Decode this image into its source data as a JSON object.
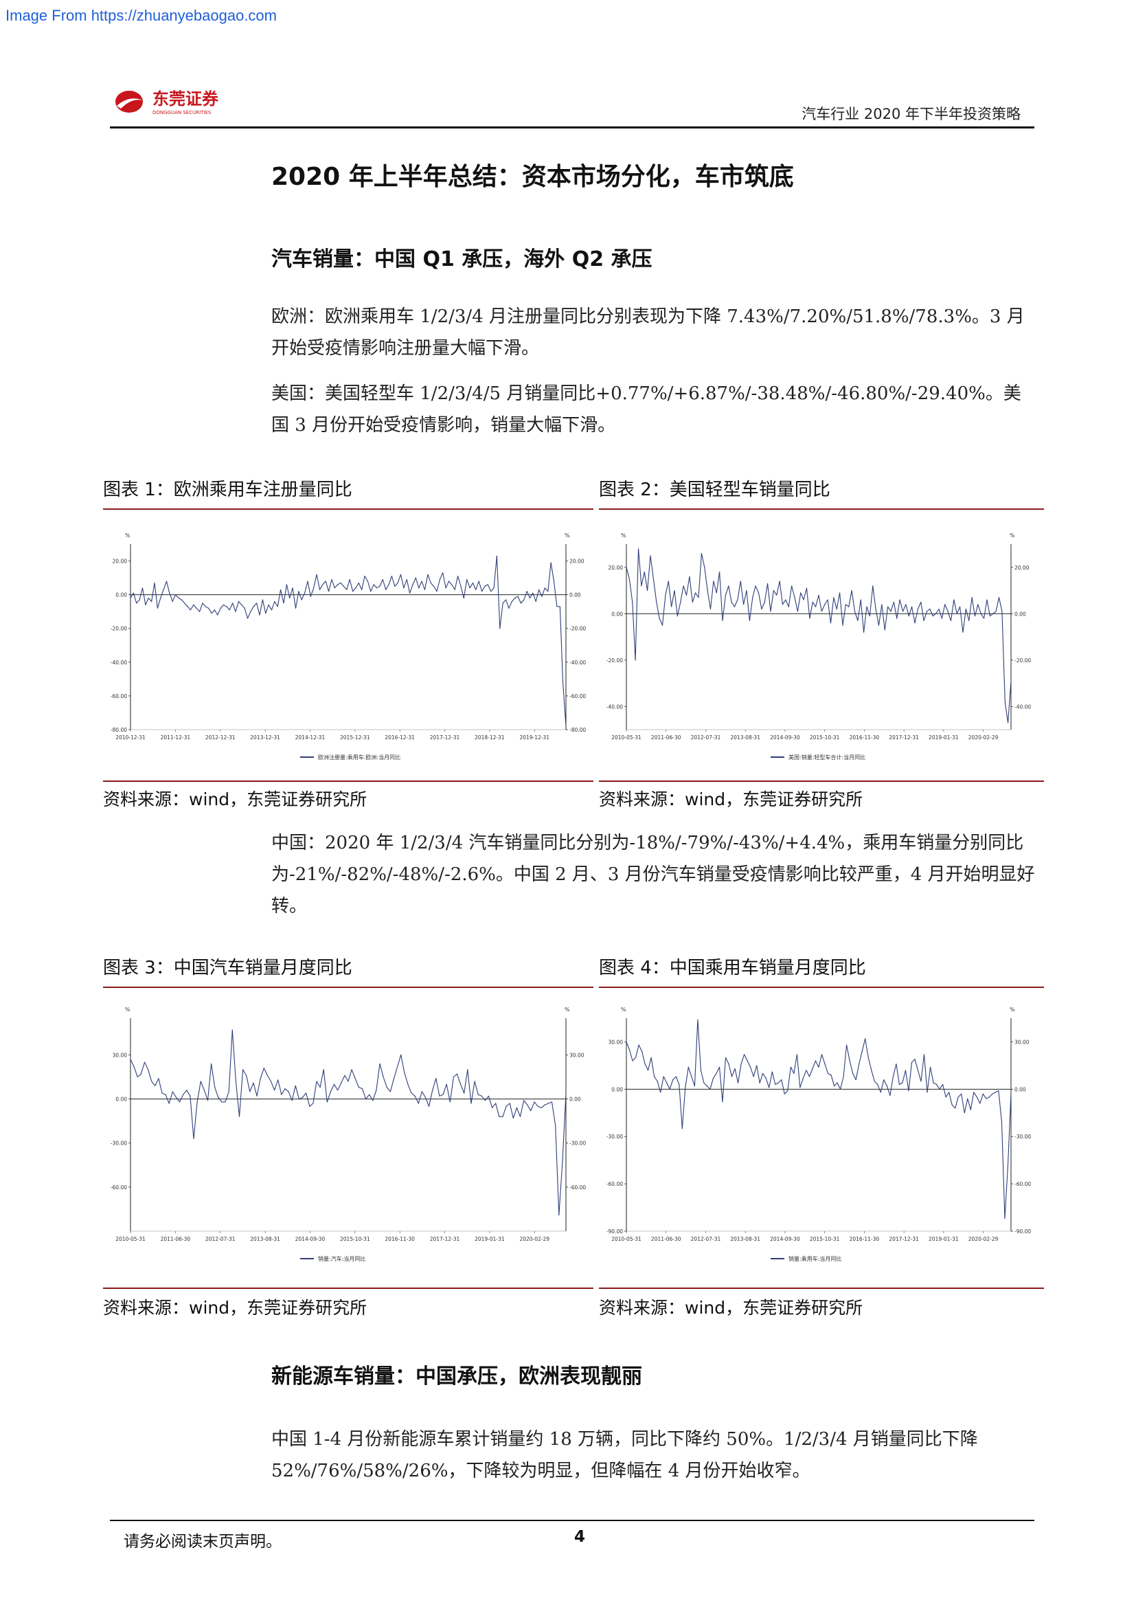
{
  "watermark": "Image From https://zhuanyebaogao.com",
  "header": {
    "logo_text": "东莞证券",
    "logo_subtext": "DONGGUAN SECURITIES",
    "report_title": "汽车行业 2020 年下半年投资策略"
  },
  "section_title": "2020 年上半年总结：资本市场分化，车市筑底",
  "subsection1_title": "汽车销量：中国 Q1 承压，海外 Q2 承压",
  "para_europe": "欧洲：欧洲乘用车 1/2/3/4 月注册量同比分别表现为下降 7.43%/7.20%/51.8%/78.3%。3 月开始受疫情影响注册量大幅下滑。",
  "para_us": "美国：美国轻型车 1/2/3/4/5 月销量同比+0.77%/+6.87%/-38.48%/-46.80%/-29.40%。美国 3 月份开始受疫情影响，销量大幅下滑。",
  "para_china": "中国：2020 年 1/2/3/4 汽车销量同比分别为-18%/-79%/-43%/+4.4%，乘用车销量分别同比为-21%/-82%/-48%/-2.6%。中国 2 月、3 月份汽车销量受疫情影响比较严重，4 月开始明显好转。",
  "subsection2_title": "新能源车销量：中国承压，欧洲表现靓丽",
  "para_nev": "中国 1-4 月份新能源车累计销量约 18 万辆，同比下降约 50%。1/2/3/4 月销量同比下降 52%/76%/58%/26%，下降较为明显，但降幅在 4 月份开始收窄。",
  "figures": [
    {
      "title": "图表 1：欧洲乘用车注册量同比",
      "source": "资料来源：wind，东莞证券研究所"
    },
    {
      "title": "图表 2：美国轻型车销量同比",
      "source": "资料来源：wind，东莞证券研究所"
    },
    {
      "title": "图表 3：中国汽车销量月度同比",
      "source": "资料来源：wind，东莞证券研究所"
    },
    {
      "title": "图表 4：中国乘用车销量月度同比",
      "source": "资料来源：wind，东莞证券研究所"
    }
  ],
  "footer": {
    "note": "请务必阅读末页声明。",
    "page": "4"
  },
  "colors": {
    "line": "#2f3e78",
    "axis": "#222222",
    "grid": "#cccccc",
    "rule": "#8b1a1a",
    "logo_red": "#c8161d"
  },
  "chart_data": [
    {
      "type": "line",
      "unit_left": "%",
      "unit_right": "%",
      "legend": "欧洲注册量:乘用车:欧洲:当月同比",
      "ylim": [
        -80,
        30
      ],
      "yticks": [
        20,
        0,
        -20,
        -40,
        -60,
        -80
      ],
      "ytick_labels": [
        "20.00",
        "0.00",
        "-20.00",
        "-40.00",
        "-60.00",
        "-80.00"
      ],
      "xtick_labels": [
        "2010-12-31",
        "2011-12-31",
        "2012-12-31",
        "2013-12-31",
        "2014-12-31",
        "2015-12-31",
        "2016-12-31",
        "2017-12-31",
        "2018-12-31",
        "2019-12-31"
      ],
      "x_start": "2010-12",
      "x_end": "2020-04",
      "values": [
        -2,
        1,
        -5,
        -3,
        4,
        -6,
        -2,
        -4,
        7,
        -8,
        -2,
        3,
        8,
        1,
        -4,
        0,
        -2,
        -3,
        -5,
        -7,
        -9,
        -6,
        -8,
        -10,
        -5,
        -7,
        -8,
        -11,
        -9,
        -12,
        -8,
        -6,
        -7,
        -9,
        -5,
        -10,
        -4,
        -6,
        -8,
        -14,
        -10,
        -7,
        -5,
        -12,
        -3,
        -11,
        -6,
        -9,
        -4,
        -7,
        3,
        -5,
        6,
        -2,
        4,
        -8,
        2,
        -3,
        1,
        8,
        -1,
        4,
        12,
        3,
        6,
        8,
        2,
        9,
        4,
        6,
        7,
        5,
        3,
        9,
        2,
        4,
        7,
        3,
        11,
        8,
        2,
        6,
        4,
        5,
        9,
        3,
        6,
        11,
        5,
        7,
        12,
        4,
        9,
        1,
        6,
        10,
        4,
        8,
        3,
        12,
        7,
        5,
        2,
        9,
        13,
        4,
        8,
        6,
        3,
        11,
        5,
        -2,
        9,
        4,
        7,
        3,
        8,
        2,
        5,
        6,
        2,
        4,
        23,
        -20,
        -5,
        -3,
        -8,
        -4,
        -2,
        -1,
        -5,
        -3,
        2,
        -2,
        1,
        -4,
        3,
        -1,
        4,
        2,
        19,
        8,
        -7,
        -7,
        -52,
        -78
      ]
    },
    {
      "type": "line",
      "unit_left": "%",
      "unit_right": "%",
      "legend": "美国:销量:轻型车合计:当月同比",
      "ylim": [
        -50,
        30
      ],
      "yticks": [
        20,
        0,
        -20,
        -40
      ],
      "ytick_labels": [
        "20.00",
        "0.00",
        "-20.00",
        "-40.00"
      ],
      "xtick_labels": [
        "2010-05-31",
        "2011-06-30",
        "2012-07-31",
        "2013-08-31",
        "2014-09-30",
        "2015-10-31",
        "2016-11-30",
        "2017-12-31",
        "2019-01-31",
        "2020-02-29"
      ],
      "x_start": "2010-05",
      "x_end": "2020-05",
      "values": [
        20,
        15,
        5,
        -20,
        28,
        12,
        18,
        10,
        25,
        15,
        5,
        -2,
        -5,
        8,
        14,
        3,
        10,
        -1,
        5,
        12,
        8,
        16,
        5,
        9,
        7,
        26,
        20,
        10,
        2,
        14,
        9,
        18,
        -3,
        8,
        12,
        5,
        3,
        6,
        14,
        4,
        10,
        -3,
        7,
        12,
        9,
        2,
        5,
        13,
        1,
        10,
        8,
        14,
        4,
        6,
        3,
        12,
        7,
        1,
        9,
        6,
        11,
        -2,
        5,
        3,
        8,
        1,
        4,
        6,
        -4,
        7,
        2,
        9,
        -5,
        4,
        3,
        10,
        1,
        -3,
        6,
        -8,
        3,
        -1,
        12,
        2,
        -5,
        4,
        -7,
        3,
        1,
        5,
        -2,
        6,
        1,
        4,
        -1,
        3,
        -4,
        2,
        5,
        -3,
        1,
        2,
        -1,
        0,
        2,
        -2,
        4,
        1,
        -3,
        6,
        0,
        3,
        -8,
        2,
        -3,
        7,
        -1,
        4,
        0,
        -2,
        6,
        -1,
        0,
        1,
        7,
        1,
        -38,
        -47,
        -29
      ]
    },
    {
      "type": "line",
      "unit_left": "%",
      "unit_right": "%",
      "legend": "销量:汽车:当月同比",
      "ylim": [
        -90,
        55
      ],
      "yticks": [
        30,
        0,
        -30,
        -60
      ],
      "ytick_labels": [
        "30.00",
        "0.00",
        "-30.00",
        "-60.00"
      ],
      "xtick_labels": [
        "2010-05-31",
        "2011-06-30",
        "2012-07-31",
        "2013-08-31",
        "2014-09-30",
        "2015-10-31",
        "2016-11-30",
        "2017-12-31",
        "2019-01-31",
        "2020-02-29"
      ],
      "x_start": "2010-05",
      "x_end": "2020-04",
      "values": [
        27,
        22,
        15,
        17,
        25,
        20,
        12,
        9,
        14,
        4,
        3,
        -3,
        5,
        1,
        -2,
        3,
        6,
        2,
        -27,
        -2,
        12,
        6,
        -1,
        24,
        8,
        1,
        -2,
        -2,
        5,
        47,
        12,
        -12,
        20,
        16,
        5,
        11,
        2,
        14,
        21,
        16,
        12,
        6,
        13,
        3,
        7,
        5,
        -1,
        9,
        0,
        1,
        4,
        -5,
        -3,
        12,
        8,
        20,
        -2,
        5,
        10,
        6,
        11,
        16,
        12,
        20,
        14,
        8,
        7,
        0,
        3,
        -1,
        6,
        24,
        15,
        8,
        5,
        14,
        22,
        30,
        18,
        10,
        4,
        2,
        -3,
        5,
        1,
        -5,
        6,
        14,
        2,
        3,
        10,
        -2,
        15,
        17,
        10,
        4,
        20,
        -3,
        12,
        3,
        2,
        -1,
        2,
        -6,
        -3,
        -12,
        -12,
        -5,
        -3,
        -13,
        -6,
        -12,
        -1,
        -4,
        -8,
        -2,
        -5,
        -6,
        -4,
        -3,
        -2,
        -18,
        -79,
        -43,
        4
      ]
    },
    {
      "type": "line",
      "unit_left": "%",
      "unit_right": "%",
      "legend": "销量:乘用车:当月同比",
      "ylim": [
        -90,
        45
      ],
      "yticks": [
        30,
        0,
        -30,
        -60,
        -90
      ],
      "ytick_labels": [
        "30.00",
        "0.00",
        "-30.00",
        "-60.00",
        "-90.00"
      ],
      "xtick_labels": [
        "2010-05-31",
        "2011-06-30",
        "2012-07-31",
        "2013-08-31",
        "2014-09-30",
        "2015-10-31",
        "2016-11-30",
        "2017-12-31",
        "2019-01-31",
        "2020-02-29"
      ],
      "x_start": "2010-05",
      "x_end": "2020-04",
      "values": [
        30,
        25,
        18,
        20,
        28,
        24,
        16,
        12,
        20,
        8,
        5,
        -2,
        8,
        4,
        0,
        6,
        8,
        3,
        -25,
        1,
        14,
        8,
        2,
        44,
        12,
        4,
        2,
        0,
        7,
        10,
        14,
        -8,
        20,
        16,
        8,
        13,
        4,
        16,
        22,
        18,
        14,
        8,
        15,
        4,
        10,
        7,
        1,
        11,
        3,
        4,
        6,
        -3,
        -1,
        14,
        10,
        22,
        1,
        7,
        12,
        8,
        13,
        18,
        14,
        22,
        16,
        10,
        9,
        2,
        4,
        0,
        8,
        28,
        18,
        10,
        6,
        16,
        24,
        32,
        20,
        12,
        5,
        3,
        -2,
        6,
        2,
        -4,
        8,
        16,
        3,
        4,
        12,
        -1,
        17,
        19,
        12,
        5,
        22,
        -2,
        14,
        4,
        3,
        0,
        3,
        -5,
        -2,
        -10,
        -12,
        -5,
        -3,
        -15,
        -6,
        -13,
        -2,
        -5,
        -9,
        -3,
        -6,
        -5,
        -3,
        -2,
        -1,
        -21,
        -82,
        -48,
        -3
      ]
    }
  ]
}
